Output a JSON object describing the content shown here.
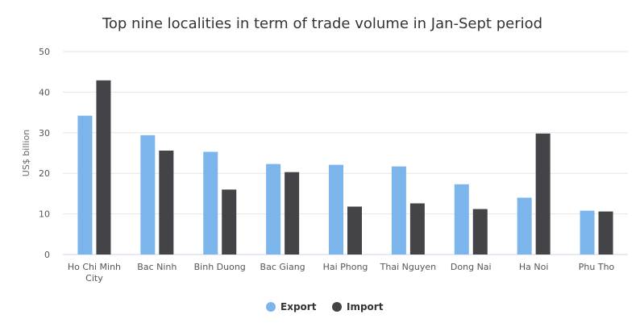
{
  "chart_data": {
    "type": "bar",
    "title": "Top nine localities in term of trade volume in Jan-Sept period",
    "ylabel": "US$ billion",
    "xlabel": "",
    "categories": [
      "Ho Chi Minh City",
      "Bac Ninh",
      "Binh Duong",
      "Bac Giang",
      "Hai Phong",
      "Thai Nguyen",
      "Dong Nai",
      "Ha Noi",
      "Phu Tho"
    ],
    "category_lines": [
      [
        "Ho Chi Minh",
        "City"
      ],
      [
        "Bac Ninh"
      ],
      [
        "Binh Duong"
      ],
      [
        "Bac Giang"
      ],
      [
        "Hai Phong"
      ],
      [
        "Thai Nguyen"
      ],
      [
        "Dong Nai"
      ],
      [
        "Ha Noi"
      ],
      [
        "Phu Tho"
      ]
    ],
    "series": [
      {
        "name": "Export",
        "color": "#7cb5ec",
        "values": [
          34.2,
          29.4,
          25.3,
          22.3,
          22.1,
          21.7,
          17.3,
          14.0,
          10.8
        ]
      },
      {
        "name": "Import",
        "color": "#434348",
        "values": [
          42.9,
          25.6,
          16.0,
          20.3,
          11.8,
          12.6,
          11.2,
          29.8,
          10.6
        ]
      }
    ],
    "ylim": [
      0,
      50
    ],
    "yticks": [
      0,
      10,
      20,
      30,
      40,
      50
    ],
    "grid": true,
    "legend_position": "bottom-center"
  }
}
